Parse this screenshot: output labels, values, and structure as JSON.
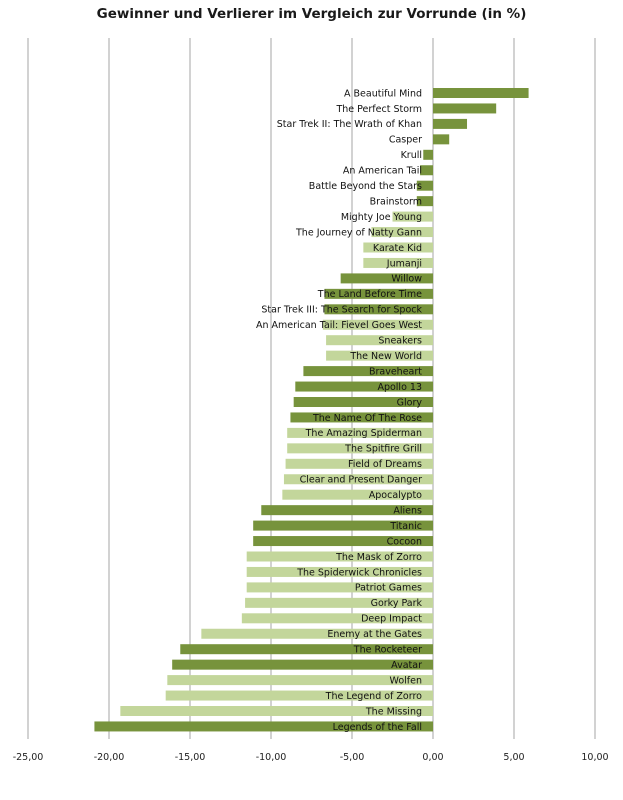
{
  "chart_data": {
    "type": "bar",
    "orientation": "horizontal",
    "title": "Gewinner und Verlierer im Vergleich zur Vorrunde (in %)",
    "xlabel": "",
    "ylabel": "",
    "xlim": [
      -25,
      10
    ],
    "x_ticks": [
      "-25,00",
      "-20,00",
      "-15,00",
      "-10,00",
      "-5,00",
      "0,00",
      "5,00",
      "10,00"
    ],
    "x_tick_values": [
      -25,
      -20,
      -15,
      -10,
      -5,
      0,
      5,
      10
    ],
    "grid": "vertical",
    "legend": "none",
    "colors": {
      "dark": "#77933c",
      "light": "#c3d69b",
      "grid": "#a6a6a6"
    },
    "categories": [
      "A Beautiful Mind",
      "The Perfect Storm",
      "Star Trek II:  The Wrath of Khan",
      "Casper",
      "Krull",
      "An American Tail",
      "Battle Beyond the Stars",
      "Brainstorm",
      "Mighty Joe Young",
      "The Journey of Natty  Gann",
      "Karate Kid",
      "Jumanji",
      "Willow",
      "The Land Before Time",
      "Star Trek III:  The Search for Spock",
      "An American Tail:  Fievel Goes West",
      "Sneakers",
      "The New World",
      "Braveheart",
      "Apollo 13",
      "Glory",
      "The Name  Of The  Rose",
      "The Amazing  Spiderman",
      "The Spitfire Grill",
      "Field of Dreams",
      "Clear and Present Danger",
      "Apocalypto",
      "Aliens",
      "Titanic",
      "Cocoon",
      "The Mask of Zorro",
      "The Spiderwick Chronicles",
      "Patriot Games",
      "Gorky Park",
      "Deep Impact",
      "Enemy at the Gates",
      "The Rocketeer",
      "Avatar",
      "Wolfen",
      "The Legend of Zorro",
      "The Missing",
      "Legends of the  Fall"
    ],
    "values": [
      5.9,
      3.9,
      2.1,
      1.0,
      -0.6,
      -0.8,
      -1.0,
      -1.0,
      -2.5,
      -3.8,
      -4.3,
      -4.3,
      -5.7,
      -6.7,
      -6.7,
      -6.8,
      -6.6,
      -6.6,
      -8.0,
      -8.5,
      -8.6,
      -8.8,
      -9.0,
      -9.0,
      -9.1,
      -9.2,
      -9.3,
      -10.6,
      -11.1,
      -11.1,
      -11.5,
      -11.5,
      -11.5,
      -11.6,
      -11.8,
      -14.3,
      -15.6,
      -16.1,
      -16.4,
      -16.5,
      -19.3,
      -20.9
    ],
    "shades": [
      "dark",
      "dark",
      "dark",
      "dark",
      "dark",
      "dark",
      "dark",
      "dark",
      "light",
      "light",
      "light",
      "light",
      "dark",
      "dark",
      "dark",
      "light",
      "light",
      "light",
      "dark",
      "dark",
      "dark",
      "dark",
      "light",
      "light",
      "light",
      "light",
      "light",
      "dark",
      "dark",
      "dark",
      "light",
      "light",
      "light",
      "light",
      "light",
      "light",
      "dark",
      "dark",
      "light",
      "light",
      "light",
      "dark"
    ]
  }
}
